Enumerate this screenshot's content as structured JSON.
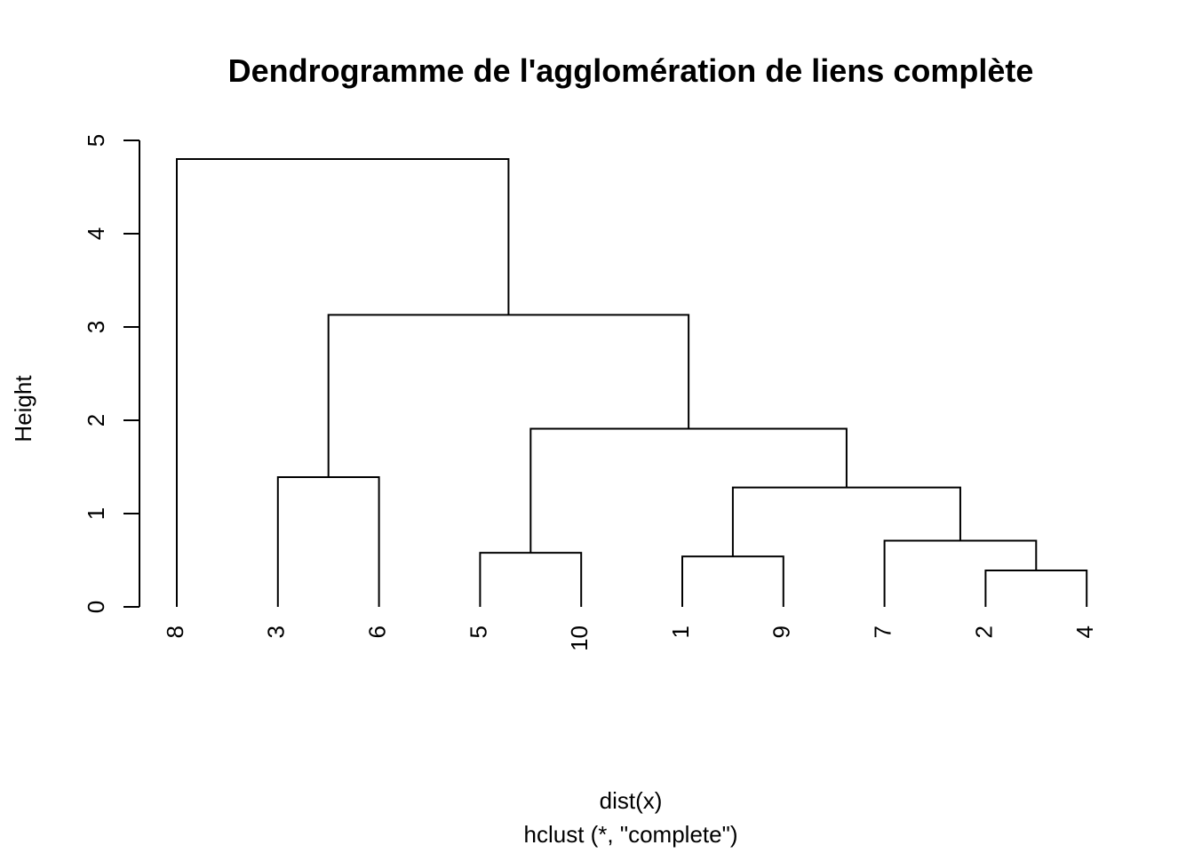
{
  "chart_data": {
    "type": "dendrogram",
    "title": "Dendrogramme de l'agglomération de liens complète",
    "ylabel": "Height",
    "xlabel": "dist(x)",
    "sublabel": "hclust (*, \"complete\")",
    "ylim": [
      0,
      5
    ],
    "yticks": [
      0,
      1,
      2,
      3,
      4,
      5
    ],
    "leaf_order": [
      "8",
      "3",
      "6",
      "5",
      "10",
      "1",
      "9",
      "7",
      "2",
      "4"
    ],
    "merges": [
      {
        "left": "2",
        "right": "4",
        "height": 0.39
      },
      {
        "left": "1",
        "right": "9",
        "height": 0.54
      },
      {
        "left": "5",
        "right": "10",
        "height": 0.58
      },
      {
        "left": "7",
        "right": "(2,4)",
        "height": 0.71
      },
      {
        "left": "(1,9)",
        "right": "(7,(2,4))",
        "height": 1.28
      },
      {
        "left": "3",
        "right": "6",
        "height": 1.39
      },
      {
        "left": "(5,10)",
        "right": "((1,9),(7,(2,4)))",
        "height": 1.91
      },
      {
        "left": "(3,6)",
        "right": "((5,10),((1,9),(7,(2,4))))",
        "height": 3.13
      },
      {
        "left": "8",
        "right": "((3,6),((5,10),((1,9),(7,(2,4)))))",
        "height": 4.8
      }
    ]
  }
}
